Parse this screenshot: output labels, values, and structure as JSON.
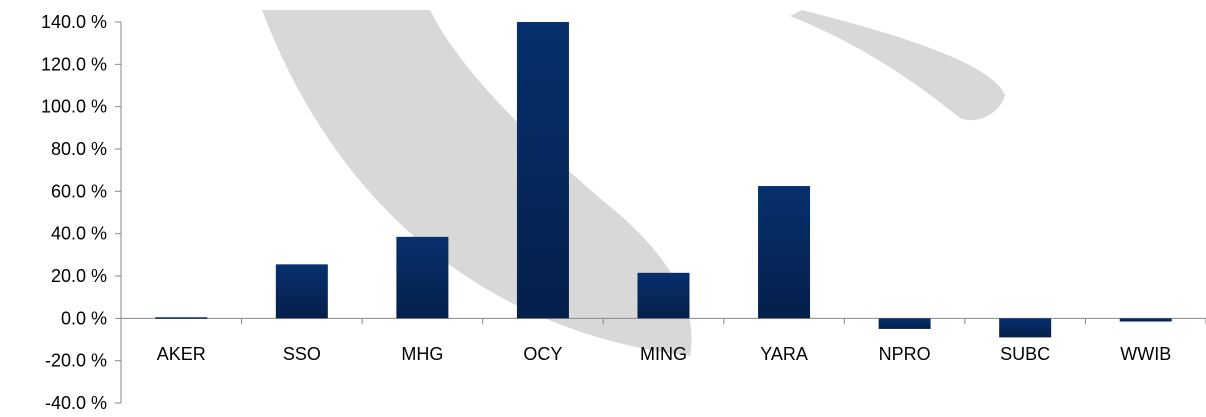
{
  "chart_data": {
    "type": "bar",
    "title": "",
    "xlabel": "",
    "ylabel": "",
    "categories": [
      "AKER",
      "SSO",
      "MHG",
      "OCY",
      "MING",
      "YARA",
      "NPRO",
      "SUBC",
      "WWIB"
    ],
    "values": [
      0.5,
      25.5,
      38.5,
      140.0,
      21.5,
      62.5,
      -5.0,
      -9.0,
      -1.5
    ],
    "ylim": [
      -40,
      140
    ],
    "yticks": [
      140,
      120,
      100,
      80,
      60,
      40,
      20,
      0,
      -20,
      -40
    ],
    "ytick_labels": [
      "140.0 %",
      "120.0 %",
      "100.0 %",
      "80.0 %",
      "60.0 %",
      "40.0 %",
      "20.0 %",
      "0.0 %",
      "-20.0 %",
      "-40.0 %"
    ],
    "grid": false,
    "legend": "none",
    "colors": {
      "bar_top": "#06306e",
      "bar_bottom": "#051f4a",
      "axis": "#888888",
      "watermark": "#d8d8d8"
    }
  }
}
